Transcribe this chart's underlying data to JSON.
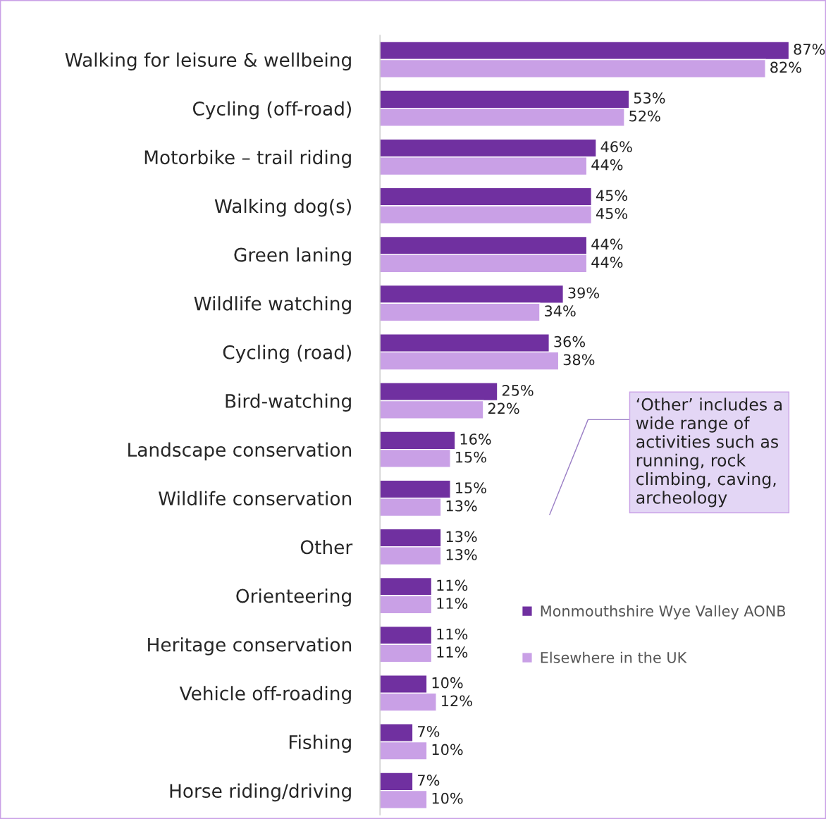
{
  "chart_data": {
    "type": "bar",
    "orientation": "horizontal",
    "categories": [
      "Walking for leisure & wellbeing",
      "Cycling (off-road)",
      "Motorbike – trail riding",
      "Walking dog(s)",
      "Green laning",
      "Wildlife watching",
      "Cycling (road)",
      "Bird-watching",
      "Landscape conservation",
      "Wildlife conservation",
      "Other",
      "Orienteering",
      "Heritage conservation",
      "Vehicle off-roading",
      "Fishing",
      "Horse riding/driving"
    ],
    "series": [
      {
        "name": "Monmouthshire Wye Valley AONB",
        "color": "#7030a0",
        "values": [
          87,
          53,
          46,
          45,
          44,
          39,
          36,
          25,
          16,
          15,
          13,
          11,
          11,
          10,
          7,
          7
        ],
        "value_labels": [
          "87%",
          "53%",
          "46%",
          "45%",
          "44%",
          "39%",
          "36%",
          "25%",
          "16%",
          "15%",
          "13%",
          "11%",
          "11%",
          "10%",
          "7%",
          "7%"
        ]
      },
      {
        "name": "Elsewhere in the UK",
        "color": "#c9a0e6",
        "values": [
          82,
          52,
          44,
          45,
          44,
          34,
          38,
          22,
          15,
          13,
          13,
          11,
          11,
          12,
          10,
          10
        ],
        "value_labels": [
          "82%",
          "52%",
          "44%",
          "45%",
          "44%",
          "34%",
          "38%",
          "22%",
          "15%",
          "13%",
          "13%",
          "11%",
          "11%",
          "12%",
          "10%",
          "10%"
        ]
      }
    ],
    "data_labels": true,
    "legend": "right",
    "grid": false,
    "annotations": [
      "‘Other’ includes a wide range of activities such as running, rock climbing, caving, archeology"
    ]
  }
}
